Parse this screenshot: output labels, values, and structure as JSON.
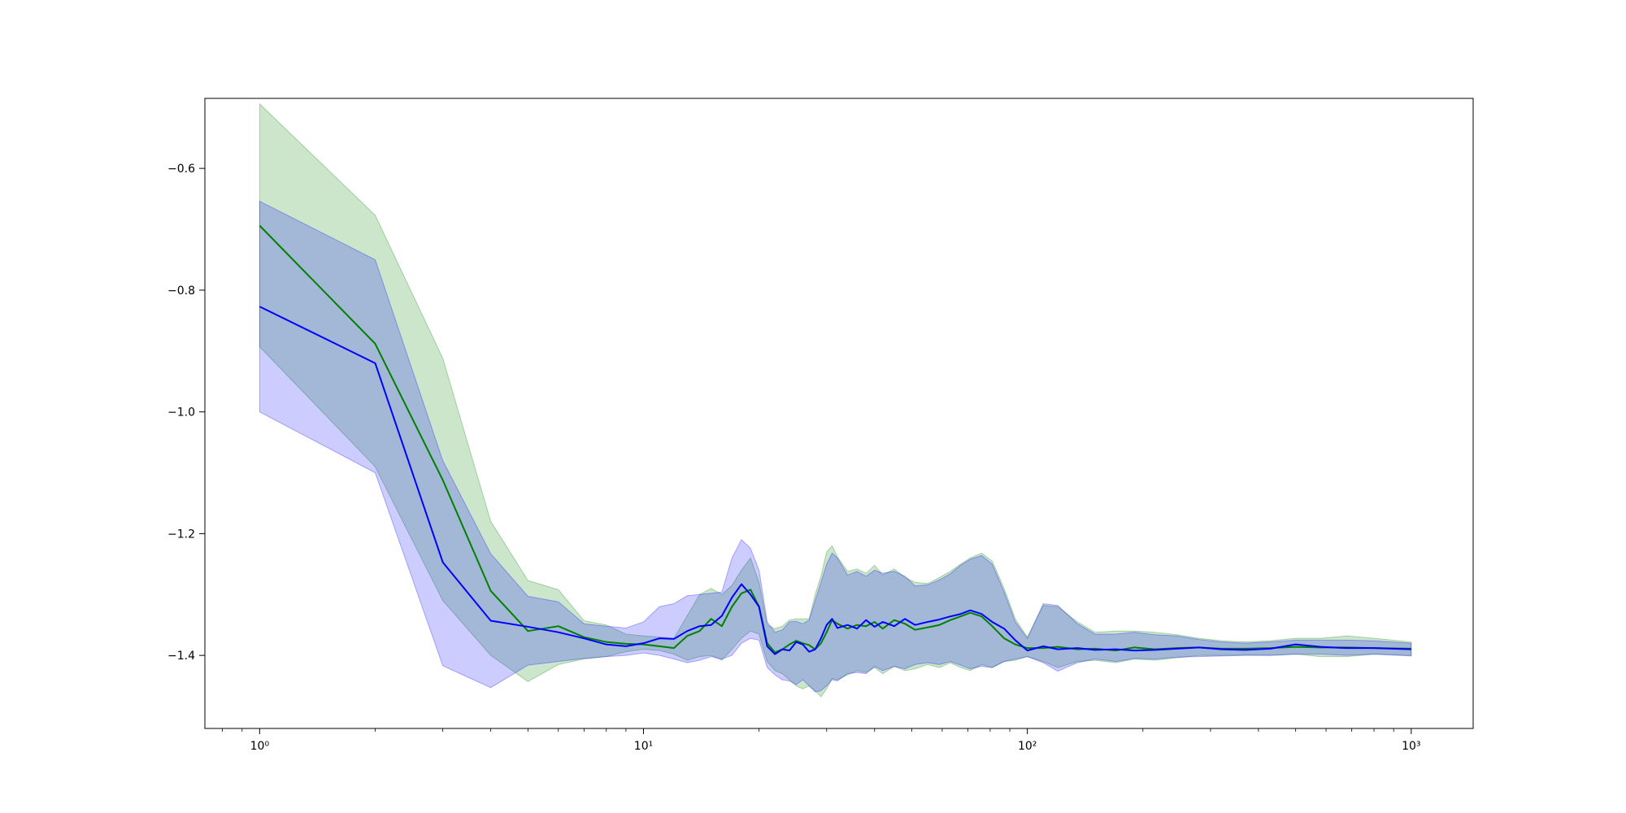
{
  "chart_data": {
    "type": "line",
    "title": "",
    "xlabel": "",
    "ylabel": "",
    "xscale": "log",
    "xlim": [
      0.72,
      1450
    ],
    "ylim": [
      -1.52,
      -0.485
    ],
    "x_ticks": [
      {
        "value": 1,
        "label": "10⁰"
      },
      {
        "value": 10,
        "label": "10¹"
      },
      {
        "value": 100,
        "label": "10²"
      },
      {
        "value": 1000,
        "label": "10³"
      }
    ],
    "y_ticks": [
      {
        "value": -0.6,
        "label": "−0.6"
      },
      {
        "value": -0.8,
        "label": "−0.8"
      },
      {
        "value": -1.0,
        "label": "−1.0"
      },
      {
        "value": -1.2,
        "label": "−1.2"
      },
      {
        "value": -1.4,
        "label": "−1.4"
      }
    ],
    "grid": false,
    "legend": "none",
    "series": [
      {
        "color": "#008000",
        "band_color": "#008000",
        "band_opacity": 0.2,
        "x": [
          1,
          2,
          3,
          4,
          5,
          6,
          7,
          8,
          9,
          10,
          11,
          12,
          13,
          14,
          15,
          16,
          17,
          18,
          19,
          20,
          21,
          22,
          23,
          24,
          25,
          26,
          27,
          28,
          29,
          30,
          31,
          32,
          34,
          36,
          38,
          40,
          42,
          45,
          48,
          51,
          55,
          59,
          63,
          67,
          71,
          76,
          81,
          87,
          93,
          100,
          110,
          120,
          135,
          150,
          170,
          190,
          215,
          245,
          280,
          320,
          370,
          430,
          500,
          580,
          680,
          800,
          1000
        ],
        "y": [
          -0.694,
          -0.888,
          -1.112,
          -1.294,
          -1.36,
          -1.352,
          -1.37,
          -1.378,
          -1.381,
          -1.382,
          -1.385,
          -1.388,
          -1.368,
          -1.36,
          -1.34,
          -1.352,
          -1.32,
          -1.298,
          -1.292,
          -1.32,
          -1.38,
          -1.395,
          -1.39,
          -1.382,
          -1.376,
          -1.38,
          -1.383,
          -1.39,
          -1.38,
          -1.362,
          -1.342,
          -1.348,
          -1.356,
          -1.35,
          -1.352,
          -1.345,
          -1.356,
          -1.342,
          -1.348,
          -1.358,
          -1.354,
          -1.35,
          -1.342,
          -1.336,
          -1.33,
          -1.336,
          -1.352,
          -1.372,
          -1.382,
          -1.388,
          -1.388,
          -1.386,
          -1.39,
          -1.389,
          -1.392,
          -1.387,
          -1.39,
          -1.388,
          -1.387,
          -1.389,
          -1.389,
          -1.388,
          -1.386,
          -1.387,
          -1.387,
          -1.388,
          -1.389
        ],
        "lower": [
          -0.893,
          -1.09,
          -1.31,
          -1.4,
          -1.443,
          -1.415,
          -1.406,
          -1.402,
          -1.394,
          -1.39,
          -1.392,
          -1.398,
          -1.408,
          -1.402,
          -1.4,
          -1.408,
          -1.39,
          -1.372,
          -1.36,
          -1.365,
          -1.41,
          -1.425,
          -1.43,
          -1.44,
          -1.45,
          -1.455,
          -1.45,
          -1.458,
          -1.468,
          -1.455,
          -1.438,
          -1.44,
          -1.432,
          -1.425,
          -1.428,
          -1.42,
          -1.43,
          -1.418,
          -1.425,
          -1.422,
          -1.415,
          -1.42,
          -1.412,
          -1.42,
          -1.425,
          -1.415,
          -1.42,
          -1.41,
          -1.408,
          -1.402,
          -1.41,
          -1.42,
          -1.41,
          -1.408,
          -1.412,
          -1.406,
          -1.408,
          -1.404,
          -1.4,
          -1.4,
          -1.399,
          -1.4,
          -1.398,
          -1.402,
          -1.402,
          -1.398,
          -1.4
        ],
        "upper": [
          -0.494,
          -0.677,
          -0.912,
          -1.18,
          -1.277,
          -1.292,
          -1.343,
          -1.35,
          -1.365,
          -1.368,
          -1.37,
          -1.372,
          -1.335,
          -1.3,
          -1.29,
          -1.3,
          -1.285,
          -1.26,
          -1.24,
          -1.28,
          -1.35,
          -1.356,
          -1.352,
          -1.342,
          -1.34,
          -1.34,
          -1.34,
          -1.3,
          -1.27,
          -1.23,
          -1.22,
          -1.238,
          -1.262,
          -1.258,
          -1.265,
          -1.252,
          -1.268,
          -1.258,
          -1.272,
          -1.28,
          -1.282,
          -1.272,
          -1.262,
          -1.25,
          -1.24,
          -1.232,
          -1.245,
          -1.29,
          -1.34,
          -1.37,
          -1.318,
          -1.32,
          -1.345,
          -1.362,
          -1.36,
          -1.36,
          -1.362,
          -1.366,
          -1.372,
          -1.376,
          -1.378,
          -1.376,
          -1.372,
          -1.372,
          -1.368,
          -1.372,
          -1.378
        ]
      },
      {
        "color": "#0000ff",
        "band_color": "#0000ff",
        "band_opacity": 0.2,
        "x": [
          1,
          2,
          3,
          4,
          5,
          6,
          7,
          8,
          9,
          10,
          11,
          12,
          13,
          14,
          15,
          16,
          17,
          18,
          19,
          20,
          21,
          22,
          23,
          24,
          25,
          26,
          27,
          28,
          29,
          30,
          31,
          32,
          34,
          36,
          38,
          40,
          42,
          45,
          48,
          51,
          55,
          59,
          63,
          67,
          71,
          76,
          81,
          87,
          93,
          100,
          110,
          120,
          135,
          150,
          170,
          190,
          215,
          245,
          280,
          320,
          370,
          430,
          500,
          580,
          680,
          800,
          1000
        ],
        "y": [
          -0.827,
          -0.92,
          -1.247,
          -1.343,
          -1.353,
          -1.362,
          -1.372,
          -1.382,
          -1.385,
          -1.38,
          -1.372,
          -1.373,
          -1.36,
          -1.352,
          -1.35,
          -1.335,
          -1.305,
          -1.283,
          -1.3,
          -1.32,
          -1.385,
          -1.398,
          -1.39,
          -1.392,
          -1.378,
          -1.382,
          -1.394,
          -1.39,
          -1.372,
          -1.35,
          -1.34,
          -1.355,
          -1.35,
          -1.356,
          -1.342,
          -1.353,
          -1.345,
          -1.352,
          -1.34,
          -1.35,
          -1.345,
          -1.341,
          -1.336,
          -1.332,
          -1.326,
          -1.332,
          -1.345,
          -1.356,
          -1.375,
          -1.392,
          -1.385,
          -1.39,
          -1.388,
          -1.391,
          -1.39,
          -1.392,
          -1.391,
          -1.389,
          -1.387,
          -1.39,
          -1.391,
          -1.389,
          -1.382,
          -1.386,
          -1.388,
          -1.388,
          -1.39
        ],
        "lower": [
          -1.0,
          -1.1,
          -1.417,
          -1.453,
          -1.416,
          -1.41,
          -1.405,
          -1.402,
          -1.4,
          -1.396,
          -1.4,
          -1.406,
          -1.412,
          -1.408,
          -1.402,
          -1.406,
          -1.4,
          -1.38,
          -1.372,
          -1.375,
          -1.42,
          -1.432,
          -1.44,
          -1.442,
          -1.448,
          -1.44,
          -1.45,
          -1.46,
          -1.458,
          -1.45,
          -1.44,
          -1.442,
          -1.43,
          -1.428,
          -1.43,
          -1.418,
          -1.425,
          -1.418,
          -1.422,
          -1.415,
          -1.412,
          -1.415,
          -1.41,
          -1.416,
          -1.422,
          -1.418,
          -1.42,
          -1.41,
          -1.406,
          -1.402,
          -1.412,
          -1.426,
          -1.412,
          -1.406,
          -1.41,
          -1.405,
          -1.406,
          -1.403,
          -1.402,
          -1.401,
          -1.4,
          -1.4,
          -1.398,
          -1.398,
          -1.4,
          -1.398,
          -1.401
        ],
        "upper": [
          -0.654,
          -0.75,
          -1.08,
          -1.233,
          -1.303,
          -1.312,
          -1.348,
          -1.352,
          -1.355,
          -1.345,
          -1.32,
          -1.315,
          -1.302,
          -1.3,
          -1.298,
          -1.296,
          -1.24,
          -1.21,
          -1.224,
          -1.26,
          -1.345,
          -1.362,
          -1.358,
          -1.345,
          -1.344,
          -1.348,
          -1.342,
          -1.31,
          -1.28,
          -1.25,
          -1.232,
          -1.24,
          -1.268,
          -1.262,
          -1.27,
          -1.26,
          -1.265,
          -1.262,
          -1.27,
          -1.286,
          -1.284,
          -1.276,
          -1.266,
          -1.252,
          -1.242,
          -1.236,
          -1.25,
          -1.296,
          -1.345,
          -1.372,
          -1.315,
          -1.318,
          -1.348,
          -1.365,
          -1.365,
          -1.362,
          -1.366,
          -1.368,
          -1.374,
          -1.378,
          -1.38,
          -1.378,
          -1.375,
          -1.375,
          -1.375,
          -1.376,
          -1.38
        ]
      }
    ]
  }
}
